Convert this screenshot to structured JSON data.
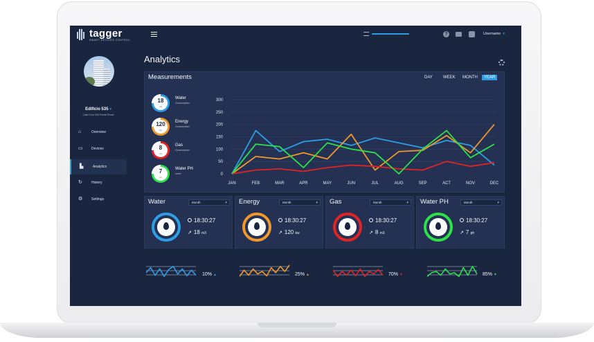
{
  "brand": {
    "name": "tagger",
    "tagline": "SMART DEVICES CONTROL"
  },
  "topbar": {
    "username": "Username"
  },
  "sidebar": {
    "site_name": "Edificio 535",
    "site_address": "Calle 3 No 535 Frente Pinnel",
    "items": [
      {
        "label": "Overview",
        "icon": "home-icon"
      },
      {
        "label": "Devices",
        "icon": "monitor-icon"
      },
      {
        "label": "Analytics",
        "icon": "chart-icon",
        "active": true
      },
      {
        "label": "History",
        "icon": "history-icon"
      },
      {
        "label": "Settings",
        "icon": "settings-icon"
      }
    ]
  },
  "page": {
    "title": "Analytics"
  },
  "measurements": {
    "title": "Measurements",
    "ranges": [
      "DAY",
      "WEEK",
      "MONTH",
      "YEAR"
    ],
    "selected_range": "YEAR",
    "kpis": [
      {
        "value": "18",
        "unit": "m3",
        "name": "Water",
        "sub": "Consumption",
        "color": "#2f9de4"
      },
      {
        "value": "120",
        "unit": "kw",
        "name": "Energy",
        "sub": "Consumption",
        "color": "#f0982b"
      },
      {
        "value": "8",
        "unit": "m3",
        "name": "Gas",
        "sub": "Consumption",
        "color": "#e02424"
      },
      {
        "value": "7",
        "unit": "ph",
        "name": "Water PH",
        "sub": "Level",
        "color": "#2ee04a"
      }
    ]
  },
  "chart_data": {
    "type": "line",
    "categories": [
      "JAN",
      "FEB",
      "MAR",
      "APR",
      "MAY",
      "JUN",
      "JUL",
      "AUG",
      "SEP",
      "ACT",
      "NOV",
      "DEC"
    ],
    "y_ticks": [
      "300",
      "250",
      "200",
      "150",
      "100",
      "50",
      "0"
    ],
    "ylim": [
      0,
      300
    ],
    "grid": true,
    "series": [
      {
        "color": "#2f9de4",
        "values": [
          0,
          175,
          90,
          130,
          140,
          115,
          145,
          125,
          105,
          135,
          115,
          35
        ]
      },
      {
        "color": "#f0982b",
        "values": [
          0,
          70,
          60,
          85,
          60,
          160,
          15,
          90,
          95,
          155,
          85,
          200
        ]
      },
      {
        "color": "#e02424",
        "values": [
          0,
          15,
          20,
          10,
          25,
          35,
          30,
          20,
          15,
          50,
          30,
          45
        ]
      },
      {
        "color": "#2ee04a",
        "values": [
          0,
          120,
          110,
          25,
          125,
          100,
          85,
          0,
          100,
          175,
          65,
          120
        ]
      }
    ]
  },
  "cards": [
    {
      "title": "Water",
      "period": "Month",
      "time": "18:30:27",
      "value": "18",
      "unit": "m3",
      "color": "#2f9de4",
      "icon": "water-drop-icon"
    },
    {
      "title": "Energy",
      "period": "Month",
      "time": "18:30:27",
      "value": "120",
      "unit": "kw",
      "color": "#f0982b",
      "icon": "energy-icon"
    },
    {
      "title": "Gas",
      "period": "Month",
      "time": "18:30:27",
      "value": "8",
      "unit": "m3",
      "color": "#e02424",
      "icon": "gas-drop-icon"
    },
    {
      "title": "Water PH",
      "period": "Month",
      "time": "18:30:27",
      "value": "7",
      "unit": "ph",
      "color": "#2ee04a",
      "icon": "ph-icon"
    }
  ],
  "sparklines": [
    {
      "pct": "10%",
      "color": "#2f9de4",
      "trend": "up",
      "values": [
        10,
        18,
        6,
        16,
        4,
        15,
        20,
        8,
        16,
        5,
        14,
        6
      ]
    },
    {
      "pct": "25%",
      "color": "#f0982b",
      "trend": "up",
      "values": [
        4,
        14,
        6,
        16,
        8,
        12,
        5,
        18,
        10,
        20,
        12,
        22
      ]
    },
    {
      "pct": "70%",
      "color": "#e02424",
      "trend": "down",
      "values": [
        14,
        4,
        12,
        6,
        14,
        5,
        16,
        4,
        12,
        8,
        15,
        6
      ]
    },
    {
      "pct": "85%",
      "color": "#2ee04a",
      "trend": "down",
      "values": [
        4,
        10,
        12,
        6,
        16,
        8,
        10,
        4,
        18,
        6,
        20,
        8
      ]
    }
  ]
}
